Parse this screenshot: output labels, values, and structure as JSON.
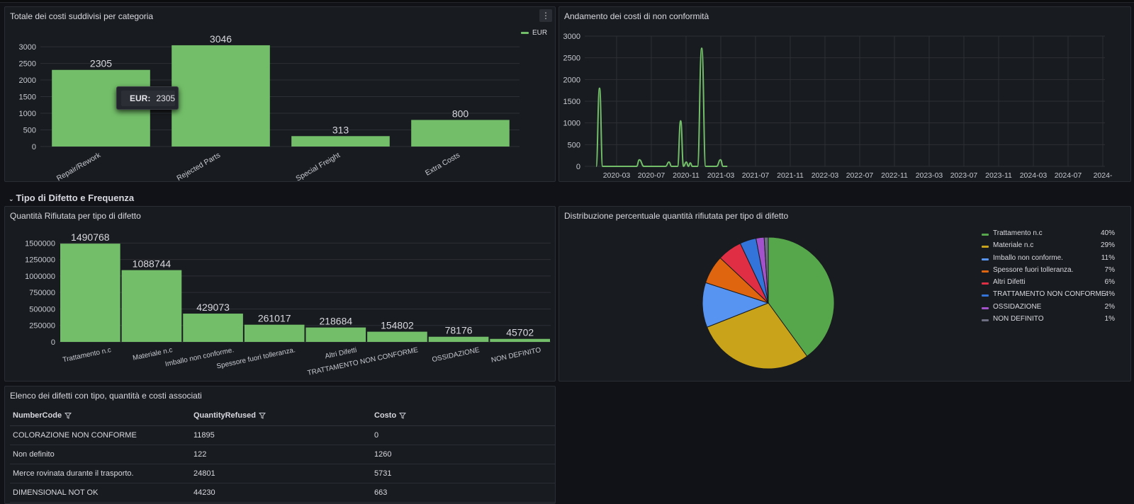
{
  "panels": {
    "costs": {
      "title": "Totale dei costi suddivisi per categoria",
      "menu_icon": "⋮",
      "legend": "EUR",
      "color": "#73bf69"
    },
    "trend": {
      "title": "Andamento dei costi di non conformità",
      "color": "#73bf69"
    },
    "row_header": "Tipo di Difetto e Frequenza",
    "qty": {
      "title": "Quantità Rifiutata per tipo di difetto",
      "color": "#73bf69"
    },
    "pie": {
      "title": "Distribuzione percentuale quantità rifiutata per tipo di difetto"
    },
    "table": {
      "title": "Elenco dei difetti con tipo, quantità e costi associati",
      "columns": [
        "NumberCode",
        "QuantityRefused",
        "Costo"
      ],
      "rows": [
        [
          "COLORAZIONE NON CONFORME",
          "11895",
          "0"
        ],
        [
          "Non definito",
          "122",
          "1260"
        ],
        [
          "Merce rovinata durante il trasporto.",
          "24801",
          "5731"
        ],
        [
          "DIMENSIONAL NOT OK",
          "44230",
          "663"
        ]
      ]
    }
  },
  "tooltip": {
    "key": "EUR:",
    "value": "2305"
  },
  "chart_data": [
    {
      "type": "bar",
      "title": "Totale dei costi suddivisi per categoria",
      "categories": [
        "Repair/Rework",
        "Rejected Parts",
        "Special Freight",
        "Extra Costs"
      ],
      "series": [
        {
          "name": "EUR",
          "values": [
            2305,
            3046,
            313,
            800
          ]
        }
      ],
      "value_labels": [
        "2305",
        "3046",
        "313",
        "800"
      ],
      "ylim": [
        0,
        3300
      ],
      "yticks": [
        "0",
        "500",
        "1000",
        "1500",
        "2000",
        "2500",
        "3000"
      ],
      "legend": "top-right"
    },
    {
      "type": "line",
      "title": "Andamento dei costi di non conformità",
      "x_ticks": [
        "2020-03",
        "2020-07",
        "2020-11",
        "2021-03",
        "2021-07",
        "2021-11",
        "2022-03",
        "2022-07",
        "2022-11",
        "2023-03",
        "2023-07",
        "2023-11",
        "2024-03",
        "2024-07",
        "2024-"
      ],
      "yticks": [
        "0",
        "500",
        "1000",
        "1500",
        "2000",
        "2500",
        "3000"
      ],
      "ylim": [
        0,
        3000
      ],
      "points": [
        [
          "2019-12-20",
          0
        ],
        [
          "2020-01-01",
          1800
        ],
        [
          "2020-01-12",
          0
        ],
        [
          "2020-05-10",
          0
        ],
        [
          "2020-05-20",
          150
        ],
        [
          "2020-06-05",
          0
        ],
        [
          "2020-08-20",
          0
        ],
        [
          "2020-09-01",
          100
        ],
        [
          "2020-09-10",
          0
        ],
        [
          "2020-10-01",
          0
        ],
        [
          "2020-10-12",
          1050
        ],
        [
          "2020-10-22",
          0
        ],
        [
          "2020-11-01",
          100
        ],
        [
          "2020-11-08",
          0
        ],
        [
          "2020-11-15",
          80
        ],
        [
          "2020-11-22",
          0
        ],
        [
          "2020-12-10",
          0
        ],
        [
          "2020-12-25",
          2720
        ],
        [
          "2021-01-08",
          0
        ],
        [
          "2021-02-15",
          0
        ],
        [
          "2021-03-01",
          150
        ],
        [
          "2021-03-10",
          0
        ],
        [
          "2021-03-25",
          0
        ]
      ],
      "grid": true
    },
    {
      "type": "bar",
      "title": "Quantità Rifiutata per tipo di difetto",
      "categories": [
        "Trattamento n.c",
        "Materiale n.c",
        "Imballo non conforme.",
        "Spessore fuori tolleranza.",
        "Altri Difetti",
        "TRATTAMENTO NON CONFORME",
        "OSSIDAZIONE",
        "NON DEFINITO"
      ],
      "values": [
        1490768,
        1088744,
        429073,
        261017,
        218684,
        154802,
        78176,
        45702
      ],
      "value_labels": [
        "1490768",
        "1088744",
        "429073",
        "261017",
        "218684",
        "154802",
        "78176",
        "45702"
      ],
      "ylim": [
        0,
        1600000
      ],
      "yticks": [
        "0",
        "250000",
        "500000",
        "750000",
        "1000000",
        "1250000",
        "1500000"
      ]
    },
    {
      "type": "pie",
      "title": "Distribuzione percentuale quantità rifiutata per tipo di difetto",
      "slices": [
        {
          "name": "Trattamento n.c",
          "value": 40,
          "label": "40%",
          "color": "#56a64b"
        },
        {
          "name": "Materiale n.c",
          "value": 29,
          "label": "29%",
          "color": "#c9a31a"
        },
        {
          "name": "Imballo non conforme.",
          "value": 11,
          "label": "11%",
          "color": "#5794f2"
        },
        {
          "name": "Spessore fuori tolleranza.",
          "value": 7,
          "label": "7%",
          "color": "#e0650f"
        },
        {
          "name": "Altri Difetti",
          "value": 6,
          "label": "6%",
          "color": "#e02f44"
        },
        {
          "name": "TRATTAMENTO NON CONFORME",
          "value": 4,
          "label": "4%",
          "color": "#3274d9"
        },
        {
          "name": "OSSIDAZIONE",
          "value": 2,
          "label": "2%",
          "color": "#a352cc"
        },
        {
          "name": "NON DEFINITO",
          "value": 1,
          "label": "1%",
          "color": "#6e6e82"
        }
      ],
      "legend": "right"
    }
  ]
}
